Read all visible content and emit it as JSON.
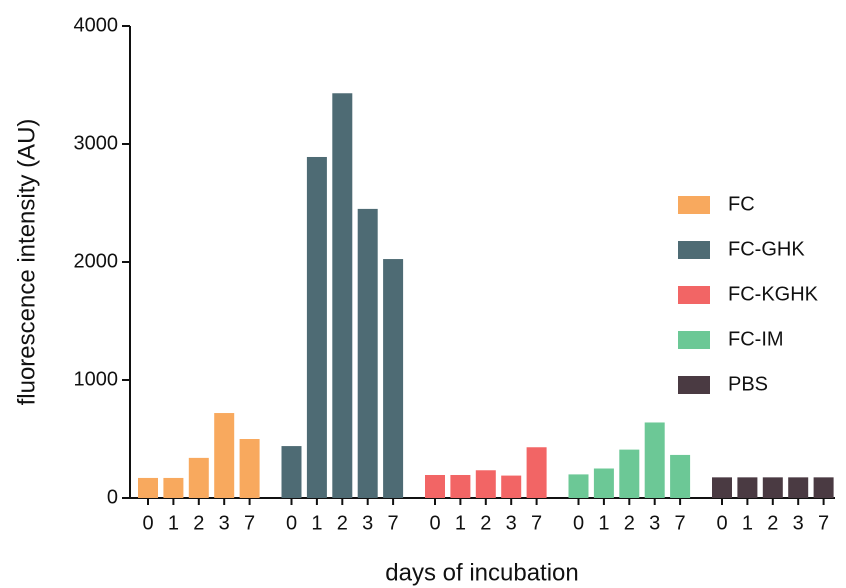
{
  "chart_data": {
    "type": "bar",
    "xlabel": "days of incubation",
    "ylabel": "fluorescence intensity  (AU)",
    "categories": [
      "0",
      "1",
      "2",
      "3",
      "7"
    ],
    "series": [
      {
        "name": "FC",
        "color": "#f8a95e",
        "values": [
          170,
          170,
          340,
          720,
          500
        ]
      },
      {
        "name": "FC-GHK",
        "color": "#4e6b74",
        "values": [
          440,
          2890,
          3430,
          2450,
          2025
        ]
      },
      {
        "name": "FC-KGHK",
        "color": "#f26565",
        "values": [
          195,
          195,
          235,
          190,
          430
        ]
      },
      {
        "name": "FC-IM",
        "color": "#6cc896",
        "values": [
          200,
          250,
          410,
          640,
          365
        ]
      },
      {
        "name": "PBS",
        "color": "#4a3a42",
        "values": [
          175,
          175,
          175,
          175,
          175
        ]
      }
    ],
    "ylim": [
      0,
      4000
    ],
    "yticks": [
      0,
      1000,
      2000,
      3000,
      4000
    ],
    "legend": "right"
  }
}
